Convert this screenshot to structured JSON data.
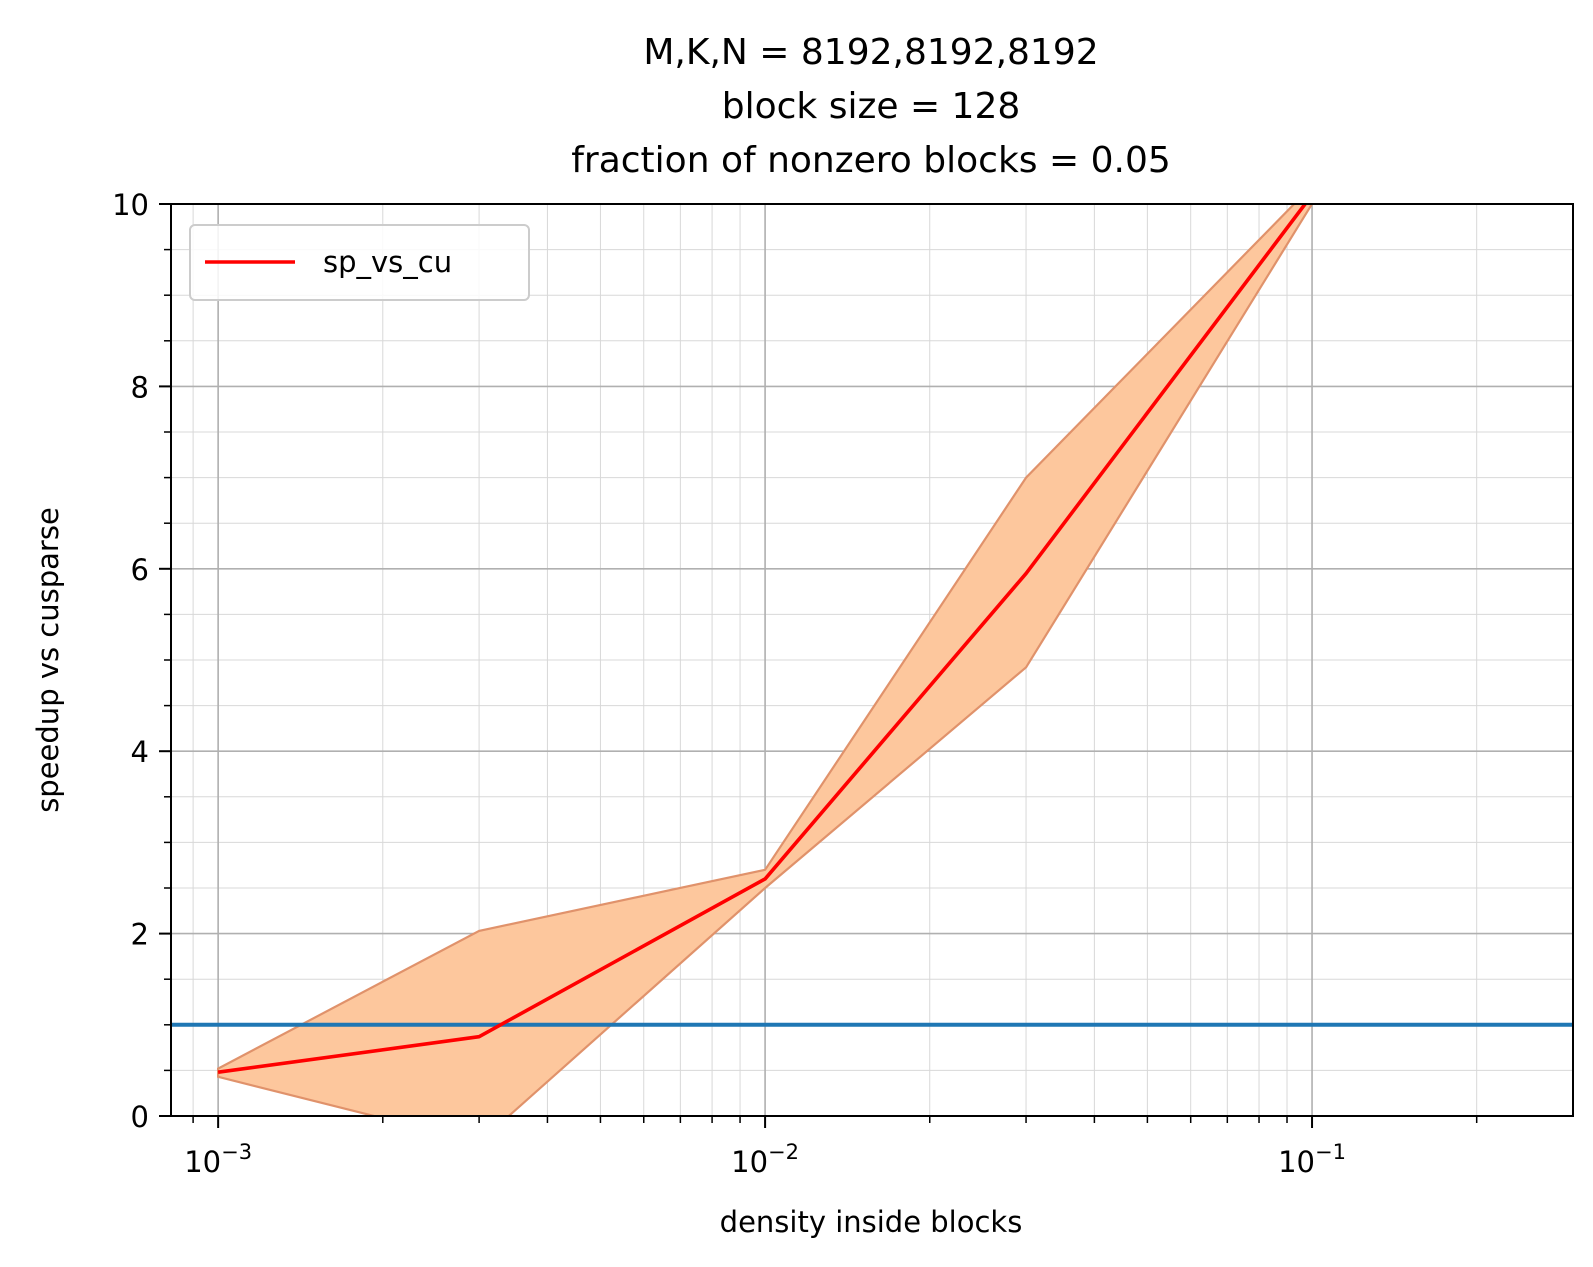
{
  "chart_data": {
    "type": "line",
    "title": [
      "M,K,N = 8192,8192,8192",
      "block size = 128",
      "fraction of nonzero blocks = 0.05"
    ],
    "xlabel": "density inside blocks",
    "ylabel": "speedup vs cusparse",
    "xscale": "log",
    "xlim": [
      0.00082,
      0.3
    ],
    "ylim": [
      0,
      10
    ],
    "x_ticks": [
      {
        "value": 0.001,
        "base": "10",
        "exp": "−3"
      },
      {
        "value": 0.01,
        "base": "10",
        "exp": "−2"
      },
      {
        "value": 0.1,
        "base": "10",
        "exp": "−1"
      }
    ],
    "y_ticks": [
      0,
      2,
      4,
      6,
      8,
      10
    ],
    "grid": true,
    "minor_grid": true,
    "legend": {
      "placement": "upper-left",
      "entries": [
        {
          "label": "sp_vs_cu",
          "color": "#ff0000"
        }
      ]
    },
    "series": [
      {
        "name": "sp_vs_cu",
        "color": "#ff0000",
        "x": [
          0.001,
          0.003,
          0.01,
          0.03,
          0.1
        ],
        "y": [
          0.48,
          0.87,
          2.6,
          5.95,
          10.1
        ],
        "band_upper": [
          0.52,
          2.03,
          2.7,
          7.0,
          10.2
        ],
        "band_lower": [
          0.43,
          -0.29,
          2.5,
          4.92,
          10.0
        ],
        "band_color": "#fdc79d",
        "band_edge": "#e0926b"
      }
    ],
    "reference_line": {
      "y": 1.0,
      "color": "#1f77b4"
    }
  }
}
